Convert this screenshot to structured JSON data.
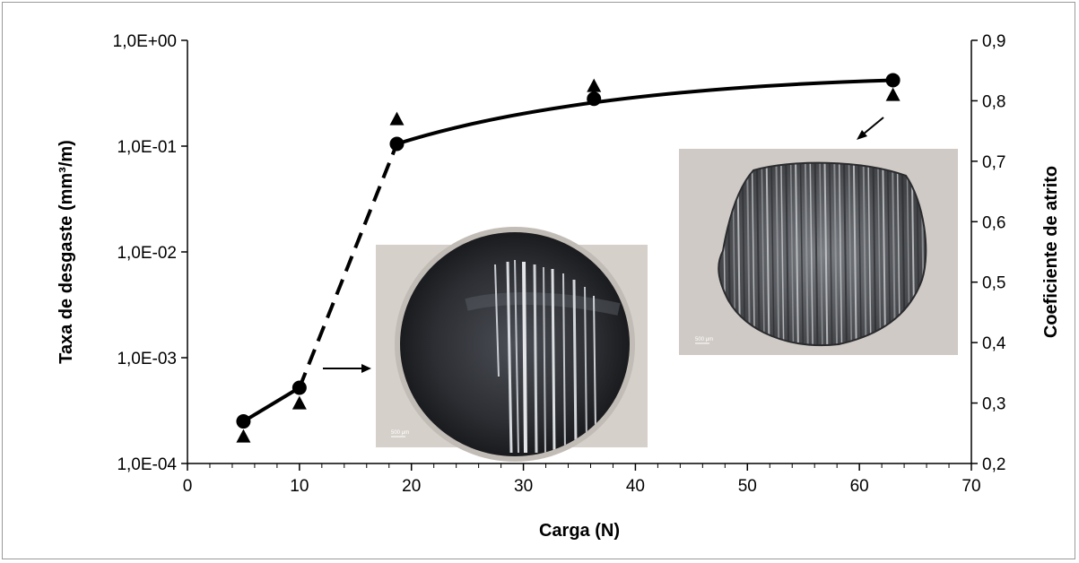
{
  "chart_data": {
    "type": "scatter",
    "xlabel": "Carga (N)",
    "ylabel": "Taxa de desgaste (mm³/m)",
    "y2label": "Coeficiente de atrito",
    "xlim": [
      0,
      70
    ],
    "ylim": [
      0.0001,
      1
    ],
    "y_scale": "log",
    "y2lim": [
      0.2,
      0.9
    ],
    "x_ticks": [
      "0",
      "10",
      "20",
      "30",
      "40",
      "50",
      "60",
      "70"
    ],
    "y_ticks": [
      "1,0E-04",
      "1,0E-03",
      "1,0E-02",
      "1,0E-01",
      "1,0E+00"
    ],
    "y2_ticks": [
      "0,2",
      "0,3",
      "0,4",
      "0,5",
      "0,6",
      "0,7",
      "0,8",
      "0,9"
    ],
    "grid": false,
    "legend": "none",
    "series": [
      {
        "axis": "left",
        "marker": "circle",
        "x": [
          5,
          10,
          18.7,
          36.3,
          63
        ],
        "y": [
          0.00025,
          0.00052,
          0.105,
          0.28,
          0.42
        ]
      },
      {
        "axis": "right",
        "marker": "triangle",
        "x": [
          5,
          10,
          18.7,
          36.3,
          63
        ],
        "y": [
          0.245,
          0.3,
          0.77,
          0.825,
          0.81
        ]
      }
    ],
    "trend_lines": [
      {
        "style": "solid",
        "x": [
          5,
          10
        ]
      },
      {
        "style": "dashed",
        "x": [
          10,
          18.7
        ]
      },
      {
        "style": "solid",
        "x": [
          18.7,
          63
        ]
      }
    ],
    "insets": [
      {
        "name": "worn-pin-micrograph-low-load",
        "scale_bar": "500 μm",
        "points_to_x": 10
      },
      {
        "name": "worn-pin-micrograph-high-load",
        "scale_bar": "500 μm",
        "points_to_x": 63
      }
    ]
  }
}
